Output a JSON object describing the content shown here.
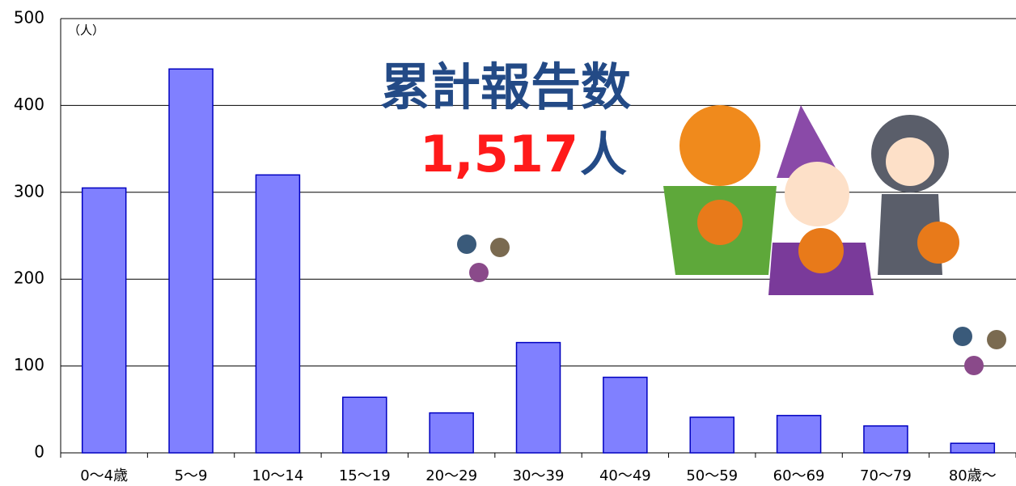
{
  "chart_data": {
    "type": "bar",
    "unit_label": "（人）",
    "annotation_title": "累計報告数",
    "annotation_total": "1,517",
    "annotation_unit": "人",
    "categories": [
      "0〜4歳",
      "5〜9",
      "10〜14",
      "15〜19",
      "20〜29",
      "30〜39",
      "40〜49",
      "50〜59",
      "60〜69",
      "70〜79",
      "80歳〜"
    ],
    "values": [
      305,
      442,
      320,
      64,
      46,
      127,
      87,
      41,
      43,
      31,
      11
    ],
    "color": "#8080ff",
    "ylim": [
      0,
      500
    ],
    "yticks": [
      0,
      100,
      200,
      300,
      400,
      500
    ],
    "grid": true
  }
}
